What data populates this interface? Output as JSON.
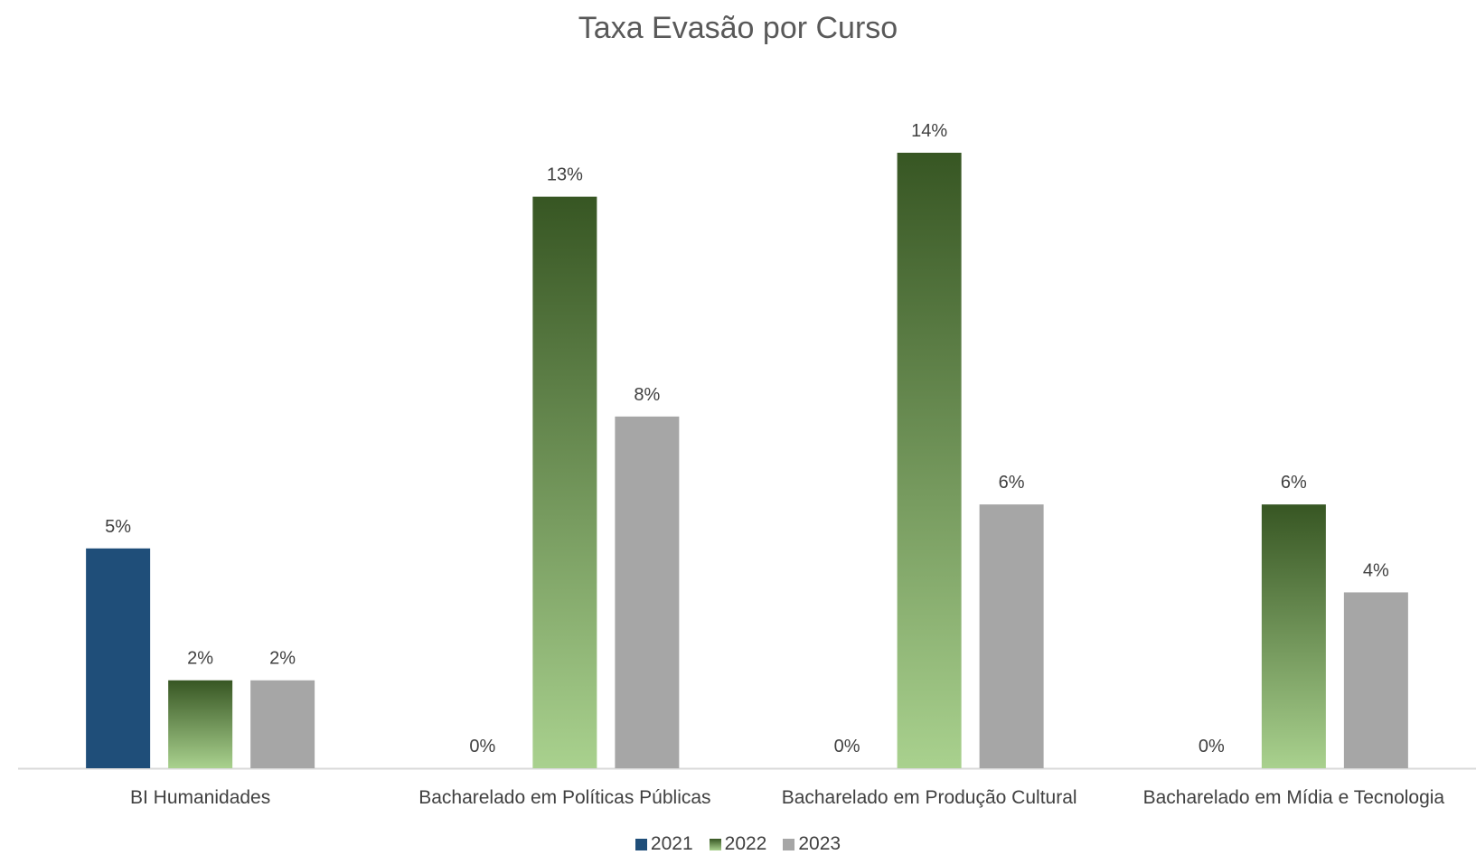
{
  "chart_data": {
    "type": "bar",
    "title": "Taxa Evasão por Curso",
    "categories": [
      "BI Humanidades",
      "Bacharelado em Políticas Públicas",
      "Bacharelado em Produção Cultural",
      "Bacharelado em Mídia e Tecnologia"
    ],
    "series": [
      {
        "name": "2021",
        "values": [
          5,
          0,
          0,
          0
        ],
        "labels": [
          "5%",
          "0%",
          "0%",
          "0%"
        ],
        "color": "#1f4e79"
      },
      {
        "name": "2022",
        "values": [
          2,
          13,
          14,
          6
        ],
        "labels": [
          "2%",
          "13%",
          "14%",
          "6%"
        ],
        "color": "#548235",
        "gradient": [
          "#375623",
          "#a9d18e"
        ]
      },
      {
        "name": "2023",
        "values": [
          2,
          8,
          6,
          4
        ],
        "labels": [
          "2%",
          "8%",
          "6%",
          "4%"
        ],
        "color": "#a6a6a6"
      }
    ],
    "ylim": [
      0,
      16
    ],
    "grid": false,
    "legend": "bottom"
  }
}
